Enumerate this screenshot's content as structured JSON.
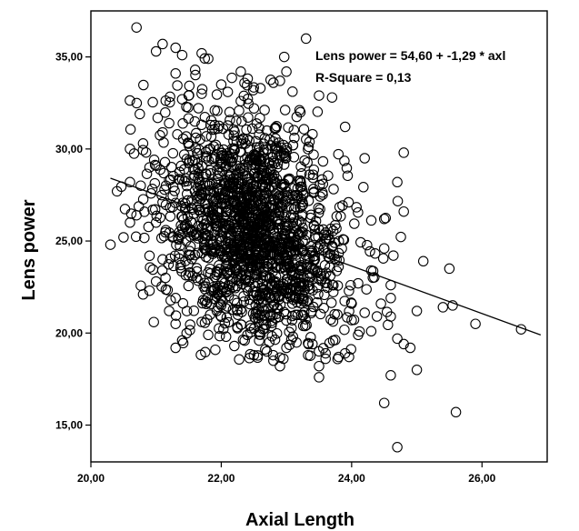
{
  "chart_data": {
    "type": "scatter",
    "xlabel": "Axial Length",
    "ylabel": "Lens power",
    "xlim": [
      20.0,
      27.0
    ],
    "ylim": [
      13.0,
      37.5
    ],
    "xticks": [
      "20,00",
      "22,00",
      "24,00",
      "26,00"
    ],
    "xtick_values": [
      20,
      22,
      24,
      26
    ],
    "yticks": [
      "15,00",
      "20,00",
      "25,00",
      "30,00",
      "35,00"
    ],
    "ytick_values": [
      15,
      20,
      25,
      30,
      35
    ],
    "grid": false,
    "annotations": [
      "Lens power = 54,60 + -1,29 * axl",
      "R-Square = 0,13"
    ],
    "fit_line": {
      "intercept": 54.6,
      "slope": -1.29,
      "x_range": [
        20.3,
        26.9
      ]
    },
    "cluster": {
      "x_mean": 22.5,
      "x_sd": 0.7,
      "y_mean": 25.6,
      "y_sd": 3.0,
      "n": 1700
    },
    "points": [
      [
        20.3,
        24.8
      ],
      [
        20.4,
        27.7
      ],
      [
        20.5,
        25.2
      ],
      [
        20.6,
        28.2
      ],
      [
        20.7,
        26.4
      ],
      [
        20.7,
        36.6
      ],
      [
        20.75,
        31.9
      ],
      [
        20.8,
        22.1
      ],
      [
        20.9,
        22.3
      ],
      [
        20.8,
        30.3
      ],
      [
        21.0,
        35.3
      ],
      [
        21.1,
        35.7
      ],
      [
        21.3,
        35.5
      ],
      [
        21.4,
        35.1
      ],
      [
        21.3,
        34.1
      ],
      [
        21.6,
        34.3
      ],
      [
        21.8,
        34.9
      ],
      [
        21.7,
        35.2
      ],
      [
        22.0,
        33.5
      ],
      [
        22.3,
        34.2
      ],
      [
        21.3,
        21.9
      ],
      [
        21.3,
        20.5
      ],
      [
        21.3,
        19.2
      ],
      [
        21.4,
        19.6
      ],
      [
        21.8,
        19.9
      ],
      [
        21.7,
        20.6
      ],
      [
        22.0,
        21.5
      ],
      [
        22.2,
        19.3
      ],
      [
        22.4,
        19.9
      ],
      [
        22.5,
        18.8
      ],
      [
        22.7,
        19.0
      ],
      [
        22.8,
        18.5
      ],
      [
        22.9,
        18.2
      ],
      [
        23.0,
        19.2
      ],
      [
        23.1,
        19.8
      ],
      [
        23.4,
        19.4
      ],
      [
        23.5,
        18.2
      ],
      [
        23.6,
        18.6
      ],
      [
        23.5,
        17.6
      ],
      [
        23.8,
        18.7
      ],
      [
        23.6,
        18.9
      ],
      [
        23.9,
        18.9
      ],
      [
        23.3,
        36.0
      ],
      [
        23.0,
        34.2
      ],
      [
        22.9,
        33.7
      ],
      [
        23.5,
        32.9
      ],
      [
        23.7,
        32.8
      ],
      [
        23.9,
        31.2
      ],
      [
        24.2,
        29.5
      ],
      [
        24.8,
        29.8
      ],
      [
        24.7,
        28.2
      ],
      [
        24.5,
        26.2
      ],
      [
        24.8,
        26.6
      ],
      [
        24.5,
        24.6
      ],
      [
        24.6,
        22.6
      ],
      [
        24.6,
        20.9
      ],
      [
        24.6,
        21.9
      ],
      [
        24.7,
        19.7
      ],
      [
        24.8,
        19.4
      ],
      [
        24.9,
        19.2
      ],
      [
        24.6,
        17.7
      ],
      [
        24.5,
        16.2
      ],
      [
        24.7,
        13.8
      ],
      [
        25.0,
        18.0
      ],
      [
        25.0,
        21.2
      ],
      [
        25.1,
        23.9
      ],
      [
        25.4,
        21.4
      ],
      [
        25.55,
        21.5
      ],
      [
        25.5,
        23.5
      ],
      [
        25.6,
        15.7
      ],
      [
        25.9,
        20.5
      ],
      [
        26.6,
        20.2
      ],
      [
        24.2,
        21.1
      ],
      [
        24.0,
        20.7
      ],
      [
        24.3,
        20.1
      ],
      [
        24.1,
        19.9
      ],
      [
        21.0,
        22.8
      ],
      [
        21.1,
        24.0
      ],
      [
        21.2,
        21.2
      ],
      [
        21.0,
        26.0
      ],
      [
        20.9,
        29.0
      ],
      [
        21.1,
        30.9
      ],
      [
        21.2,
        31.4
      ],
      [
        21.4,
        32.7
      ],
      [
        21.5,
        32.9
      ],
      [
        21.9,
        32.1
      ],
      [
        22.1,
        33.1
      ],
      [
        22.6,
        33.3
      ],
      [
        22.8,
        33.6
      ],
      [
        23.2,
        32.1
      ],
      [
        23.4,
        30.8
      ],
      [
        22.8,
        30.4
      ],
      [
        22.7,
        31.0
      ],
      [
        23.1,
        30.2
      ],
      [
        21.7,
        33.0
      ],
      [
        21.9,
        31.3
      ],
      [
        22.3,
        32.6
      ],
      [
        20.6,
        30.0
      ],
      [
        20.6,
        26.0
      ],
      [
        20.9,
        24.2
      ],
      [
        21.1,
        27.1
      ],
      [
        23.8,
        23.6
      ],
      [
        24.1,
        22.7
      ],
      [
        24.3,
        23.4
      ],
      [
        24.0,
        21.6
      ]
    ]
  }
}
